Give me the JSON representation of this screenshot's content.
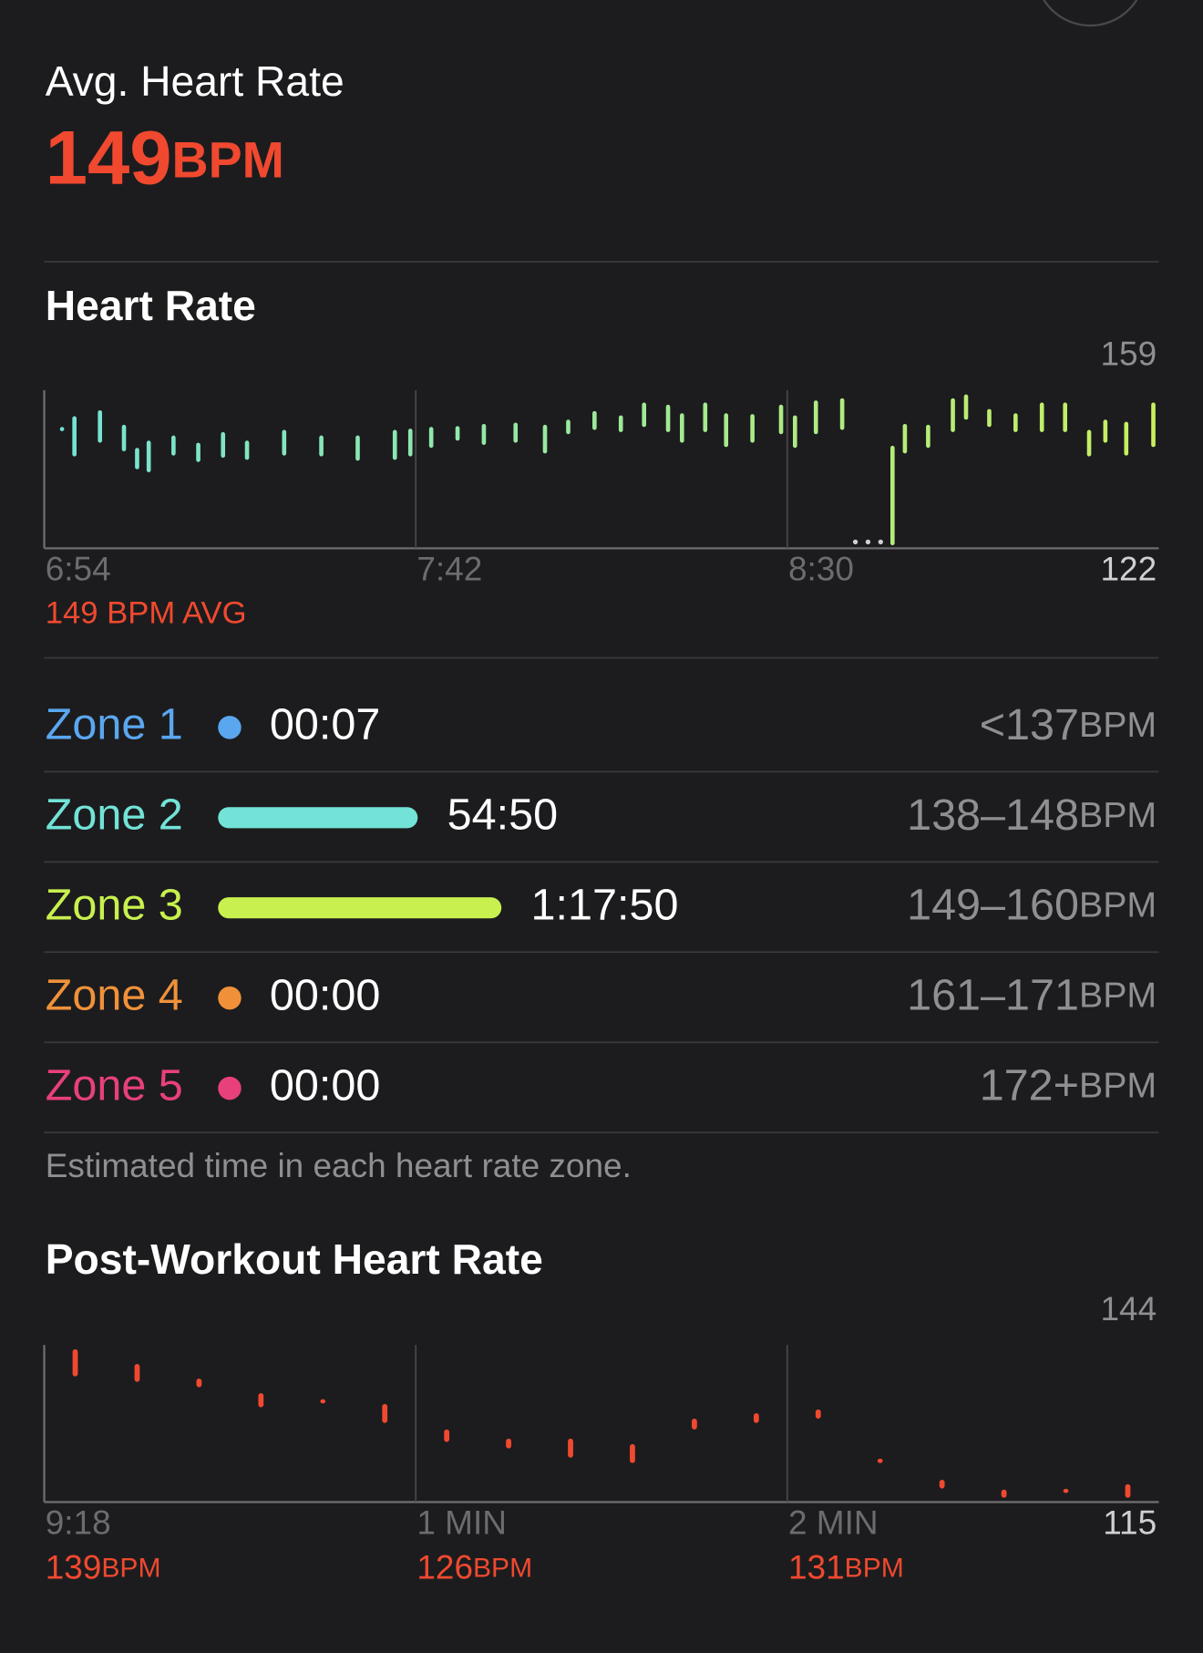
{
  "header": {
    "title": "Avg. Heart Rate",
    "value": "149",
    "unit": "BPM"
  },
  "chart_data": [
    {
      "type": "range-bar",
      "title": "Heart Rate",
      "annotation": "149 BPM AVG",
      "xlim": [
        0,
        144
      ],
      "xticks": [
        {
          "value": 0,
          "label": "6:54"
        },
        {
          "value": 48,
          "label": "7:42"
        },
        {
          "value": 96,
          "label": "8:30"
        }
      ],
      "ylim": [
        122,
        159
      ],
      "yticks": [
        122,
        159
      ],
      "colors": [
        "#72e3d6",
        "#c8ef5e"
      ],
      "x": [
        2.3,
        3.9,
        7.2,
        10.3,
        12.0,
        13.5,
        16.7,
        19.9,
        23.1,
        26.2,
        31.0,
        35.8,
        40.5,
        45.3,
        47.3,
        50.0,
        53.4,
        56.8,
        60.9,
        64.7,
        67.7,
        71.1,
        74.5,
        77.5,
        80.6,
        82.4,
        85.4,
        88.1,
        91.5,
        95.2,
        97.0,
        99.7,
        103.1,
        109.6,
        111.2,
        114.2,
        117.4,
        119.1,
        122.1,
        125.5,
        128.9,
        131.9,
        135.0,
        137.1,
        139.8,
        143.3
      ],
      "low": [
        149.5,
        143.5,
        146.7,
        144.7,
        140.5,
        139.8,
        143.7,
        142.2,
        143.2,
        142.7,
        143.7,
        143.5,
        142.5,
        142.7,
        143.5,
        145.5,
        147.2,
        146.2,
        146.7,
        144.2,
        148.7,
        149.7,
        149.2,
        150.4,
        149.2,
        146.7,
        149.2,
        145.7,
        146.7,
        148.7,
        145.5,
        148.7,
        149.7,
        122.7,
        144.2,
        145.5,
        149.2,
        152.1,
        150.4,
        149.2,
        149.2,
        149.2,
        143.5,
        146.7,
        143.7,
        145.7
      ],
      "high": [
        150.3,
        152.9,
        154.3,
        150.9,
        145.5,
        147.2,
        148.4,
        146.7,
        149.2,
        147.2,
        149.7,
        148.4,
        148.4,
        149.7,
        150.0,
        150.4,
        150.6,
        151.1,
        151.4,
        150.9,
        152.1,
        154.1,
        153.1,
        156.1,
        155.6,
        153.6,
        156.1,
        153.6,
        153.4,
        155.6,
        153.1,
        156.6,
        157.1,
        146.0,
        151.1,
        150.9,
        157.1,
        158.0,
        154.6,
        153.6,
        156.1,
        156.1,
        149.7,
        152.1,
        151.6,
        156.1
      ]
    },
    {
      "type": "range-bar",
      "title": "Post-Workout Heart Rate",
      "xlim": [
        0,
        180
      ],
      "xticks": [
        {
          "value": 0,
          "label": "9:18"
        },
        {
          "value": 60,
          "label": "1 MIN"
        },
        {
          "value": 120,
          "label": "2 MIN"
        }
      ],
      "tick_values": [
        139,
        126,
        131
      ],
      "unit": "BPM",
      "ylim": [
        115,
        144
      ],
      "yticks": [
        115,
        144
      ],
      "color": "#f0492f",
      "x": [
        5,
        15,
        25,
        35,
        45,
        55,
        65,
        75,
        85,
        95,
        105,
        115,
        125,
        135,
        145,
        155,
        165,
        175
      ],
      "low": [
        138.2,
        137.2,
        136.2,
        132.5,
        133.3,
        129.6,
        126.1,
        124.9,
        123.2,
        122.2,
        128.4,
        129.6,
        130.4,
        122.2,
        117.5,
        115.8,
        116.8,
        115.8
      ],
      "high": [
        143.2,
        140.5,
        137.8,
        135.1,
        133.9,
        133.1,
        128.4,
        126.7,
        126.7,
        125.7,
        130.4,
        131.4,
        132.1,
        123.0,
        119.1,
        117.3,
        117.3,
        118.3
      ]
    }
  ],
  "zones": {
    "rows": [
      {
        "name": "Zone 1",
        "time": "00:07",
        "range": "<137",
        "unit": "BPM",
        "color": "#5aa7f0"
      },
      {
        "name": "Zone 2",
        "time": "54:50",
        "range": "138–148",
        "unit": "BPM",
        "color": "#72e3d6"
      },
      {
        "name": "Zone 3",
        "time": "1:17:50",
        "range": "149–160",
        "unit": "BPM",
        "color": "#c8f04e"
      },
      {
        "name": "Zone 4",
        "time": "00:00",
        "range": "161–171",
        "unit": "BPM",
        "color": "#f0913a"
      },
      {
        "name": "Zone 5",
        "time": "00:00",
        "range": "172+",
        "unit": "BPM",
        "color": "#e8407a"
      }
    ],
    "note": "Estimated time in each heart rate zone."
  }
}
